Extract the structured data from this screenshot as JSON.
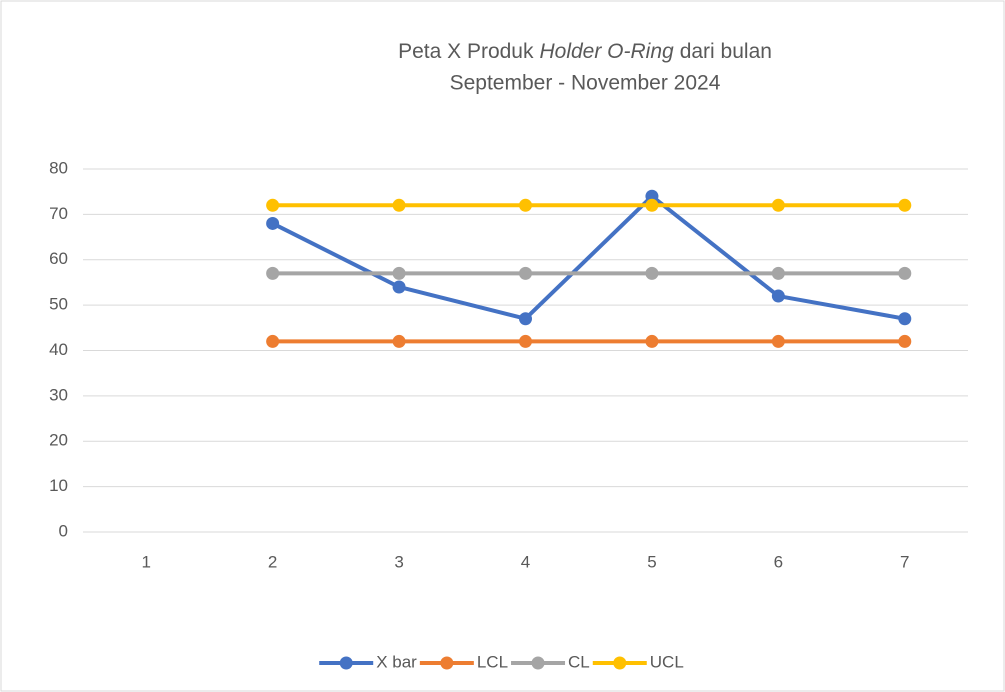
{
  "chart_data": {
    "type": "line",
    "title": {
      "line1": [
        "Peta X Produk",
        "Holder O-Ring",
        "dari bulan"
      ],
      "line2": "September - November 2024"
    },
    "categories": [
      1,
      2,
      3,
      4,
      5,
      6,
      7
    ],
    "series": [
      {
        "name": "X bar",
        "color": "#4472c4",
        "values": [
          null,
          68,
          54,
          47,
          74,
          52,
          47
        ]
      },
      {
        "name": "LCL",
        "color": "#ed7d31",
        "values": [
          null,
          42,
          42,
          42,
          42,
          42,
          42
        ]
      },
      {
        "name": "CL",
        "color": "#a5a5a5",
        "values": [
          null,
          57,
          57,
          57,
          57,
          57,
          57
        ]
      },
      {
        "name": "UCL",
        "color": "#ffc000",
        "values": [
          null,
          72,
          72,
          72,
          72,
          72,
          72
        ]
      }
    ],
    "ylim": [
      0,
      80
    ],
    "yticks": [
      0,
      10,
      20,
      30,
      40,
      50,
      60,
      70,
      80
    ],
    "grid": true,
    "legend": "bottom"
  }
}
